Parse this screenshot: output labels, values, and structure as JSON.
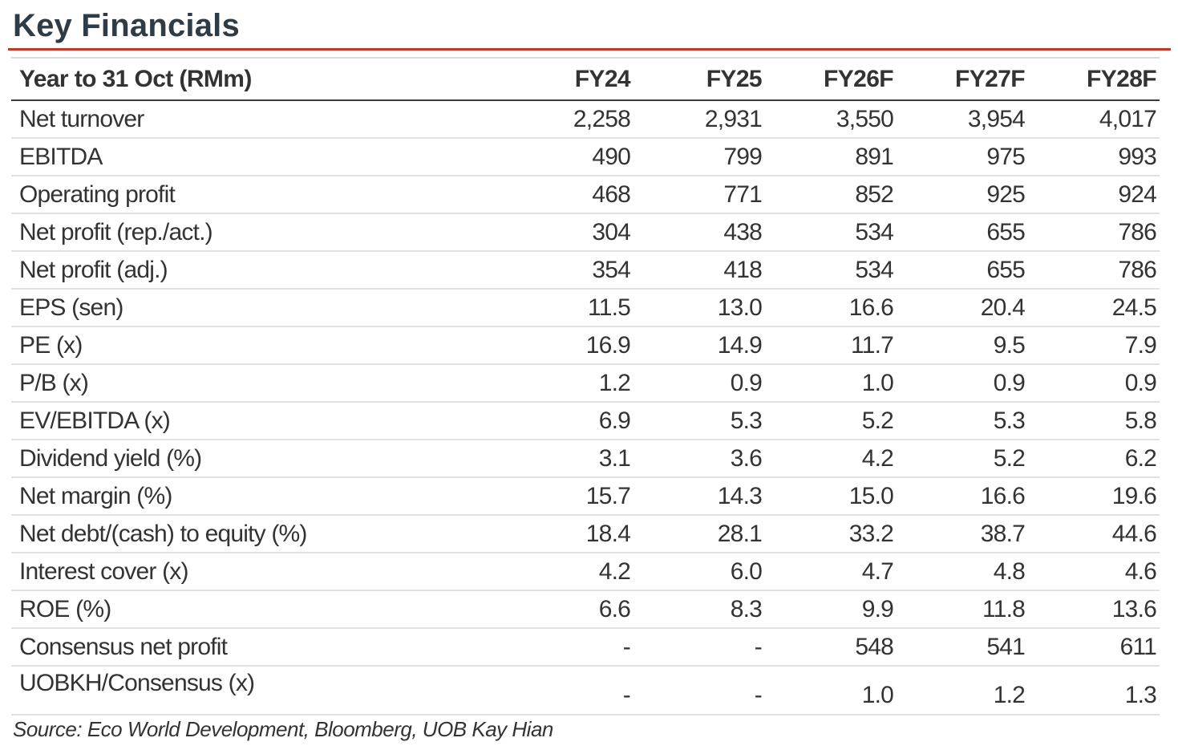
{
  "title": "Key Financials",
  "table": {
    "header": [
      "Year to 31 Oct (RMm)",
      "FY24",
      "FY25",
      "FY26F",
      "FY27F",
      "FY28F"
    ],
    "rows": [
      [
        "Net turnover",
        "2,258",
        "2,931",
        "3,550",
        "3,954",
        "4,017"
      ],
      [
        "EBITDA",
        "490",
        "799",
        "891",
        "975",
        "993"
      ],
      [
        "Operating profit",
        "468",
        "771",
        "852",
        "925",
        "924"
      ],
      [
        "Net profit (rep./act.)",
        "304",
        "438",
        "534",
        "655",
        "786"
      ],
      [
        "Net profit (adj.)",
        "354",
        "418",
        "534",
        "655",
        "786"
      ],
      [
        "EPS (sen)",
        "11.5",
        "13.0",
        "16.6",
        "20.4",
        "24.5"
      ],
      [
        "PE (x)",
        "16.9",
        "14.9",
        "11.7",
        "9.5",
        "7.9"
      ],
      [
        "P/B (x)",
        "1.2",
        "0.9",
        "1.0",
        "0.9",
        "0.9"
      ],
      [
        "EV/EBITDA (x)",
        "6.9",
        "5.3",
        "5.2",
        "5.3",
        "5.8"
      ],
      [
        "Dividend yield (%)",
        "3.1",
        "3.6",
        "4.2",
        "5.2",
        "6.2"
      ],
      [
        "Net margin (%)",
        "15.7",
        "14.3",
        "15.0",
        "16.6",
        "19.6"
      ],
      [
        "Net debt/(cash) to equity (%)",
        "18.4",
        "28.1",
        "33.2",
        "38.7",
        "44.6"
      ],
      [
        "Interest cover (x)",
        "4.2",
        "6.0",
        "4.7",
        "4.8",
        "4.6"
      ],
      [
        "ROE (%)",
        "6.6",
        "8.3",
        "9.9",
        "11.8",
        "13.6"
      ],
      [
        "Consensus net profit",
        "-",
        "-",
        "548",
        "541",
        "611"
      ],
      [
        "UOBKH/Consensus (x)",
        "-",
        "-",
        "1.0",
        "1.2",
        "1.3"
      ]
    ]
  },
  "source": "Source: Eco World Development, Bloomberg, UOB Kay Hian",
  "colors": {
    "title": "#2f3b45",
    "accent_rule": "#c0392b",
    "text": "#333333"
  }
}
